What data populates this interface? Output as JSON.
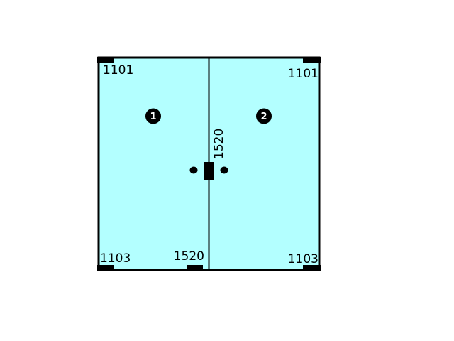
{
  "colors": {
    "glass": "#b3ffff",
    "outline": "#000000",
    "background": "#ffffff"
  },
  "panels": [
    {
      "number": "1",
      "top_fitting": "1101",
      "bottom_fitting": "1103"
    },
    {
      "number": "2",
      "top_fitting": "1101",
      "bottom_fitting": "1103"
    }
  ],
  "center_fitting": "1520",
  "floor_fitting": "1520"
}
